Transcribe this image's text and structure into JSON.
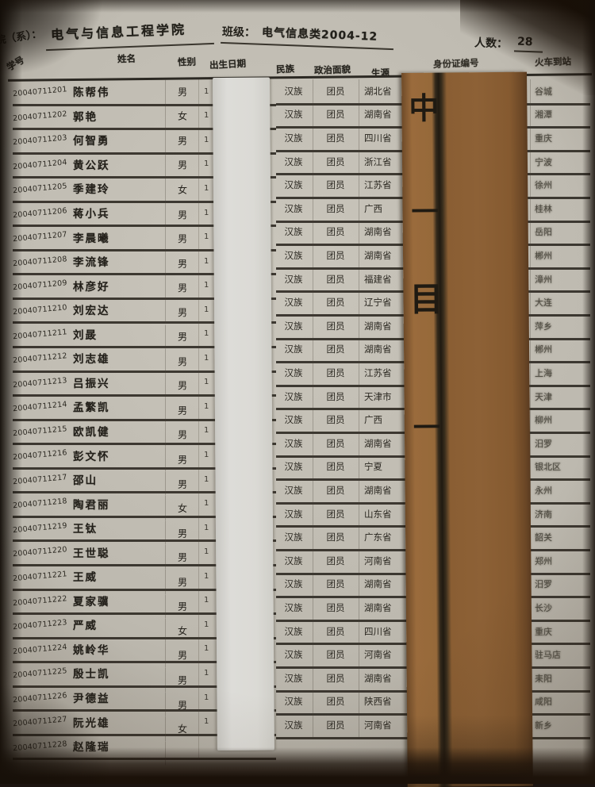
{
  "header": {
    "department_label": "院（系）：",
    "department": "电气与信息工程学院",
    "class_label": "班级：",
    "class_value": "电气信息类2004-12",
    "count_label": "人数：",
    "count_value": "28"
  },
  "columns": {
    "student_id": "学号",
    "name": "姓名",
    "gender": "性别",
    "birth_date": "出生日期",
    "ethnicity": "民族",
    "political": "政治面貌",
    "origin": "生源",
    "id_number": "身份证编号",
    "station": "火车到站"
  },
  "rows": [
    {
      "student_id": "20040711201",
      "name": "陈帮伟",
      "gender": "男",
      "birth_date": "",
      "ethnicity": "汉族",
      "political": "团员",
      "origin": "湖北省",
      "id_number": "",
      "station": "谷城"
    },
    {
      "student_id": "20040711202",
      "name": "郭艳",
      "gender": "女",
      "birth_date": "",
      "ethnicity": "汉族",
      "political": "团员",
      "origin": "湖南省",
      "id_number": "",
      "station": "湘潭"
    },
    {
      "student_id": "20040711203",
      "name": "何智勇",
      "gender": "男",
      "birth_date": "",
      "ethnicity": "汉族",
      "political": "团员",
      "origin": "四川省",
      "id_number": "",
      "station": "重庆"
    },
    {
      "student_id": "20040711204",
      "name": "黄公跃",
      "gender": "男",
      "birth_date": "",
      "ethnicity": "汉族",
      "political": "团员",
      "origin": "浙江省",
      "id_number": "",
      "station": "宁波"
    },
    {
      "student_id": "20040711205",
      "name": "季建玲",
      "gender": "女",
      "birth_date": "",
      "ethnicity": "汉族",
      "political": "团员",
      "origin": "江苏省",
      "id_number": "",
      "station": "徐州"
    },
    {
      "student_id": "20040711206",
      "name": "蒋小兵",
      "gender": "男",
      "birth_date": "",
      "ethnicity": "汉族",
      "political": "团员",
      "origin": "广西",
      "id_number": "",
      "station": "桂林"
    },
    {
      "student_id": "20040711207",
      "name": "李晨曦",
      "gender": "男",
      "birth_date": "",
      "ethnicity": "汉族",
      "political": "团员",
      "origin": "湖南省",
      "id_number": "",
      "station": "岳阳"
    },
    {
      "student_id": "20040711208",
      "name": "李流锋",
      "gender": "男",
      "birth_date": "",
      "ethnicity": "汉族",
      "political": "团员",
      "origin": "湖南省",
      "id_number": "",
      "station": "郴州"
    },
    {
      "student_id": "20040711209",
      "name": "林彦好",
      "gender": "男",
      "birth_date": "",
      "ethnicity": "汉族",
      "political": "团员",
      "origin": "福建省",
      "id_number": "",
      "station": "漳州"
    },
    {
      "student_id": "20040711210",
      "name": "刘宏达",
      "gender": "男",
      "birth_date": "",
      "ethnicity": "汉族",
      "political": "团员",
      "origin": "辽宁省",
      "id_number": "",
      "station": "大连"
    },
    {
      "student_id": "20040711211",
      "name": "刘晸",
      "gender": "男",
      "birth_date": "",
      "ethnicity": "汉族",
      "political": "团员",
      "origin": "湖南省",
      "id_number": "",
      "station": "萍乡"
    },
    {
      "student_id": "20040711212",
      "name": "刘志雄",
      "gender": "男",
      "birth_date": "",
      "ethnicity": "汉族",
      "political": "团员",
      "origin": "湖南省",
      "id_number": "",
      "station": "郴州"
    },
    {
      "student_id": "20040711213",
      "name": "吕振兴",
      "gender": "男",
      "birth_date": "",
      "ethnicity": "汉族",
      "political": "团员",
      "origin": "江苏省",
      "id_number": "",
      "station": "上海"
    },
    {
      "student_id": "20040711214",
      "name": "孟繁凯",
      "gender": "男",
      "birth_date": "",
      "ethnicity": "汉族",
      "political": "团员",
      "origin": "天津市",
      "id_number": "",
      "station": "天津"
    },
    {
      "student_id": "20040711215",
      "name": "欧凯健",
      "gender": "男",
      "birth_date": "",
      "ethnicity": "汉族",
      "political": "团员",
      "origin": "广西",
      "id_number": "",
      "station": "柳州"
    },
    {
      "student_id": "20040711216",
      "name": "彭文怀",
      "gender": "男",
      "birth_date": "",
      "ethnicity": "汉族",
      "political": "团员",
      "origin": "湖南省",
      "id_number": "",
      "station": "汨罗"
    },
    {
      "student_id": "20040711217",
      "name": "邵山",
      "gender": "男",
      "birth_date": "",
      "ethnicity": "汉族",
      "political": "团员",
      "origin": "宁夏",
      "id_number": "",
      "station": "银北区"
    },
    {
      "student_id": "20040711218",
      "name": "陶君丽",
      "gender": "女",
      "birth_date": "",
      "ethnicity": "汉族",
      "political": "团员",
      "origin": "湖南省",
      "id_number": "",
      "station": "永州"
    },
    {
      "student_id": "20040711219",
      "name": "王钛",
      "gender": "男",
      "birth_date": "",
      "ethnicity": "汉族",
      "political": "团员",
      "origin": "山东省",
      "id_number": "",
      "station": "济南"
    },
    {
      "student_id": "20040711220",
      "name": "王世聪",
      "gender": "男",
      "birth_date": "",
      "ethnicity": "汉族",
      "political": "团员",
      "origin": "广东省",
      "id_number": "",
      "station": "韶关"
    },
    {
      "student_id": "20040711221",
      "name": "王威",
      "gender": "男",
      "birth_date": "",
      "ethnicity": "汉族",
      "political": "团员",
      "origin": "河南省",
      "id_number": "",
      "station": "郑州"
    },
    {
      "student_id": "20040711222",
      "name": "夏家骥",
      "gender": "男",
      "birth_date": "",
      "ethnicity": "汉族",
      "political": "团员",
      "origin": "湖南省",
      "id_number": "",
      "station": "汨罗"
    },
    {
      "student_id": "20040711223",
      "name": "严威",
      "gender": "女",
      "birth_date": "",
      "ethnicity": "汉族",
      "political": "团员",
      "origin": "湖南省",
      "id_number": "",
      "station": "长沙"
    },
    {
      "student_id": "20040711224",
      "name": "姚岭华",
      "gender": "男",
      "birth_date": "",
      "ethnicity": "汉族",
      "political": "团员",
      "origin": "四川省",
      "id_number": "",
      "station": "重庆"
    },
    {
      "student_id": "20040711225",
      "name": "殷士凯",
      "gender": "男",
      "birth_date": "",
      "ethnicity": "汉族",
      "political": "团员",
      "origin": "河南省",
      "id_number": "",
      "station": "驻马店"
    },
    {
      "student_id": "20040711226",
      "name": "尹德益",
      "gender": "男",
      "birth_date": "",
      "ethnicity": "汉族",
      "political": "团员",
      "origin": "湖南省",
      "id_number": "",
      "station": "耒阳"
    },
    {
      "student_id": "20040711227",
      "name": "阮光雄",
      "gender": "女",
      "birth_date": "",
      "ethnicity": "汉族",
      "political": "团员",
      "origin": "陕西省",
      "id_number": "",
      "station": "咸阳"
    },
    {
      "student_id": "20040711228",
      "name": "赵隆瑞",
      "gender": "",
      "birth_date": "",
      "ethnicity": "汉族",
      "political": "团员",
      "origin": "河南省",
      "id_number": "",
      "station": "新乡"
    }
  ],
  "brown_strip": {
    "marks": [
      "中",
      "一",
      "目",
      "一"
    ]
  },
  "colors": {
    "paper": "#bdb9af",
    "kraft_strip": "#8a5e33",
    "white_strip": "#dbdad5",
    "table_line": "#2c2923",
    "ink": "#25221c"
  }
}
